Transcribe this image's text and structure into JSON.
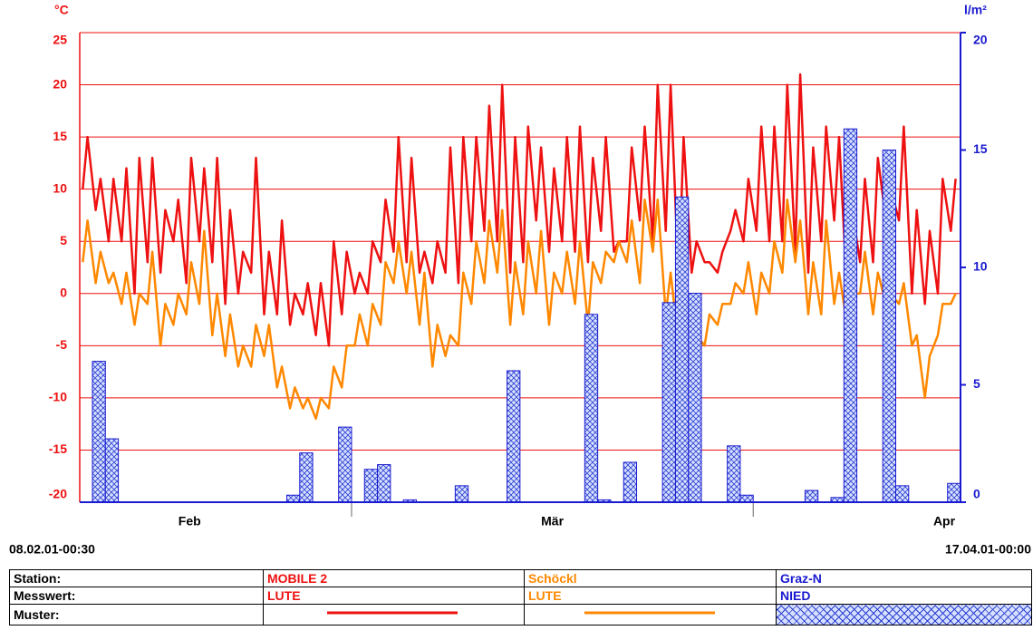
{
  "chart_data": {
    "type": "line",
    "unit_left": "°C",
    "unit_right": "l/m²",
    "xlim": [
      "08.02.01-00:30",
      "17.04.01-00:00"
    ],
    "xticks": [
      "01.03.01-00:00",
      "01.04.01-00:00"
    ],
    "month_labels": [
      "Feb",
      "Mär",
      "Apr"
    ],
    "ylim": [
      -20,
      25
    ],
    "yticks": [
      -20,
      -15,
      -10,
      -5,
      0,
      5,
      10,
      15,
      20,
      25
    ],
    "y2lim": [
      0,
      20
    ],
    "y2ticks": [
      0,
      5,
      10,
      15,
      20
    ],
    "grid": true,
    "x": [
      "08.02.01-06:00",
      "08.02.01-15:00",
      "09.02.01-06:00",
      "09.02.01-15:00",
      "10.02.01-06:00",
      "10.02.01-15:00",
      "11.02.01-06:00",
      "11.02.01-15:00",
      "12.02.01-06:00",
      "12.02.01-15:00",
      "13.02.01-06:00",
      "13.02.01-15:00",
      "14.02.01-06:00",
      "14.02.01-15:00",
      "15.02.01-06:00",
      "15.02.01-15:00",
      "16.02.01-06:00",
      "16.02.01-15:00",
      "17.02.01-06:00",
      "17.02.01-15:00",
      "18.02.01-06:00",
      "18.02.01-15:00",
      "19.02.01-06:00",
      "19.02.01-15:00",
      "20.02.01-06:00",
      "20.02.01-15:00",
      "21.02.01-06:00",
      "21.02.01-15:00",
      "22.02.01-06:00",
      "22.02.01-15:00",
      "23.02.01-06:00",
      "23.02.01-15:00",
      "24.02.01-06:00",
      "24.02.01-15:00",
      "25.02.01-06:00",
      "25.02.01-15:00",
      "26.02.01-06:00",
      "26.02.01-15:00",
      "27.02.01-06:00",
      "27.02.01-15:00",
      "28.02.01-06:00",
      "28.02.01-15:00",
      "01.03.01-06:00",
      "01.03.01-15:00",
      "02.03.01-06:00",
      "02.03.01-15:00",
      "03.03.01-06:00",
      "03.03.01-15:00",
      "04.03.01-06:00",
      "04.03.01-15:00",
      "05.03.01-06:00",
      "05.03.01-15:00",
      "06.03.01-06:00",
      "06.03.01-15:00",
      "07.03.01-06:00",
      "07.03.01-15:00",
      "08.03.01-06:00",
      "08.03.01-15:00",
      "09.03.01-06:00",
      "09.03.01-15:00",
      "10.03.01-06:00",
      "10.03.01-15:00",
      "11.03.01-06:00",
      "11.03.01-15:00",
      "12.03.01-06:00",
      "12.03.01-15:00",
      "13.03.01-06:00",
      "13.03.01-15:00",
      "14.03.01-06:00",
      "14.03.01-15:00",
      "15.03.01-06:00",
      "15.03.01-15:00",
      "16.03.01-06:00",
      "16.03.01-15:00",
      "17.03.01-06:00",
      "17.03.01-15:00",
      "18.03.01-06:00",
      "18.03.01-15:00",
      "19.03.01-06:00",
      "19.03.01-15:00",
      "20.03.01-06:00",
      "20.03.01-15:00",
      "21.03.01-06:00",
      "21.03.01-15:00",
      "22.03.01-06:00",
      "22.03.01-15:00",
      "23.03.01-06:00",
      "23.03.01-15:00",
      "24.03.01-06:00",
      "24.03.01-15:00",
      "25.03.01-06:00",
      "25.03.01-15:00",
      "26.03.01-06:00",
      "26.03.01-15:00",
      "27.03.01-06:00",
      "27.03.01-15:00",
      "28.03.01-06:00",
      "28.03.01-15:00",
      "29.03.01-06:00",
      "29.03.01-15:00",
      "30.03.01-06:00",
      "30.03.01-15:00",
      "31.03.01-06:00",
      "31.03.01-15:00",
      "01.04.01-06:00",
      "01.04.01-15:00",
      "02.04.01-06:00",
      "02.04.01-15:00",
      "03.04.01-06:00",
      "03.04.01-15:00",
      "04.04.01-06:00",
      "04.04.01-15:00",
      "05.04.01-06:00",
      "05.04.01-15:00",
      "06.04.01-06:00",
      "06.04.01-15:00",
      "07.04.01-06:00",
      "07.04.01-15:00",
      "08.04.01-06:00",
      "08.04.01-15:00",
      "09.04.01-06:00",
      "09.04.01-15:00",
      "10.04.01-06:00",
      "10.04.01-15:00",
      "11.04.01-06:00",
      "11.04.01-15:00",
      "12.04.01-06:00",
      "12.04.01-15:00",
      "13.04.01-06:00",
      "13.04.01-15:00",
      "14.04.01-06:00",
      "14.04.01-15:00",
      "15.04.01-06:00",
      "15.04.01-15:00",
      "16.04.01-06:00",
      "16.04.01-15:00"
    ],
    "table_header": [
      "Station:",
      "Messwert:",
      "Muster:"
    ],
    "series": [
      {
        "station": "MOBILE 2",
        "measure": "LUTE",
        "color": "#ee1111",
        "values": [
          10,
          15,
          8,
          11,
          5,
          11,
          5,
          12,
          0,
          13,
          3,
          13,
          2,
          8,
          5,
          9,
          1,
          13,
          5,
          12,
          3,
          13,
          -1,
          8,
          0,
          4,
          2,
          13,
          -2,
          4,
          -2,
          7,
          -3,
          0,
          -2,
          1,
          -4,
          1,
          -5,
          5,
          -2,
          4,
          0,
          2,
          0,
          5,
          3,
          9,
          4,
          15,
          3,
          13,
          2,
          4,
          1,
          5,
          2,
          14,
          1,
          15,
          5,
          15,
          6,
          18,
          5,
          20,
          2,
          15,
          3,
          16,
          7,
          14,
          4,
          12,
          5,
          15,
          4,
          16,
          3,
          13,
          6,
          15,
          4,
          5,
          5,
          14,
          7,
          16,
          5,
          20,
          6,
          20,
          1,
          15,
          2,
          5,
          3,
          3,
          2,
          4,
          6,
          8,
          5,
          11,
          6,
          16,
          5,
          16,
          5,
          20,
          4,
          21,
          2,
          14,
          5,
          16,
          7,
          15,
          0,
          8,
          3,
          11,
          3,
          13,
          7,
          10,
          7,
          16,
          0,
          8,
          -1,
          6,
          0,
          11,
          6,
          11
        ]
      },
      {
        "station": "Schöckl",
        "measure": "LUTE",
        "color": "#ff8800",
        "values": [
          3,
          7,
          1,
          4,
          1,
          2,
          -1,
          2,
          -3,
          0,
          -1,
          4,
          -5,
          -1,
          -3,
          0,
          -2,
          3,
          -1,
          6,
          -4,
          0,
          -6,
          -2,
          -7,
          -5,
          -7,
          -3,
          -6,
          -3,
          -9,
          -7,
          -11,
          -9,
          -11,
          -10,
          -12,
          -10,
          -11,
          -7,
          -9,
          -5,
          -5,
          -2,
          -5,
          -1,
          -3,
          3,
          1,
          5,
          0,
          4,
          -3,
          2,
          -7,
          -3,
          -6,
          -4,
          -5,
          2,
          -1,
          5,
          1,
          7,
          2,
          8,
          -3,
          3,
          -2,
          5,
          0,
          6,
          -3,
          2,
          0,
          4,
          -1,
          5,
          -3,
          3,
          1,
          4,
          3,
          5,
          3,
          7,
          1,
          9,
          4,
          9,
          -2,
          2,
          -5,
          -3,
          -6,
          -4,
          -5,
          -2,
          -3,
          -1,
          -1,
          1,
          0,
          3,
          -2,
          2,
          0,
          5,
          2,
          9,
          3,
          7,
          -2,
          3,
          -2,
          7,
          -1,
          2,
          -3,
          0,
          0,
          4,
          -2,
          2,
          -1,
          0,
          -1,
          1,
          -5,
          -4,
          -10,
          -6,
          -4,
          -1,
          -1,
          0
        ]
      },
      {
        "station": "Graz-N",
        "measure": "NIED",
        "color": "#1a1ad0",
        "type": "bar",
        "axis": "y2",
        "x": [
          "09.02.01",
          "10.02.01",
          "24.02.01",
          "25.02.01",
          "28.02.01",
          "02.03.01",
          "03.03.01",
          "05.03.01",
          "09.03.01",
          "13.03.01",
          "19.03.01",
          "20.03.01",
          "22.03.01",
          "25.03.01",
          "26.03.01",
          "27.03.01",
          "30.03.01",
          "31.03.01",
          "05.04.01",
          "07.04.01",
          "08.04.01",
          "11.04.01",
          "12.04.01",
          "16.04.01"
        ],
        "values": [
          6,
          2.7,
          0.3,
          2.1,
          3.2,
          1.4,
          1.6,
          0.1,
          0.7,
          5.6,
          8,
          0.1,
          1.7,
          8.5,
          13,
          8.9,
          2.4,
          0.3,
          0.5,
          0.2,
          15.9,
          15,
          0.7,
          0.8
        ]
      }
    ]
  }
}
